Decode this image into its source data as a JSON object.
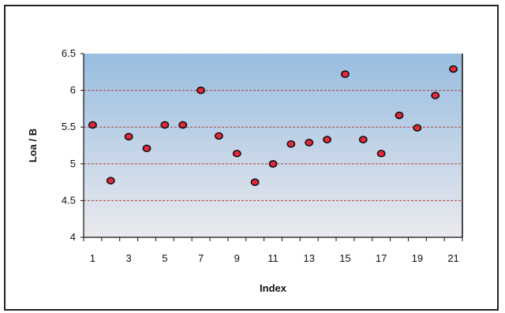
{
  "chart_data": {
    "type": "scatter",
    "title": "",
    "xlabel": "Index",
    "ylabel": "Loa / B",
    "xlim": [
      0.5,
      21.5
    ],
    "ylim": [
      4,
      6.5
    ],
    "x_ticks": [
      1,
      3,
      5,
      7,
      9,
      11,
      13,
      15,
      17,
      19,
      21
    ],
    "y_ticks": [
      4,
      4.5,
      5,
      5.5,
      6,
      6.5
    ],
    "y_tick_labels": [
      "4",
      "4.5",
      "5",
      "5.5",
      "6",
      "6.5"
    ],
    "grid": "horizontal dashed",
    "legend": "none",
    "series": [
      {
        "x": [
          1,
          2,
          3,
          4,
          5,
          6,
          7,
          8,
          9,
          10,
          11,
          12,
          13,
          14,
          15,
          16,
          17,
          18,
          19,
          20,
          21
        ],
        "y": [
          5.53,
          4.77,
          5.37,
          5.21,
          5.53,
          5.53,
          6.0,
          5.38,
          5.14,
          4.75,
          5.0,
          5.27,
          5.29,
          5.33,
          6.22,
          5.33,
          5.14,
          5.66,
          5.49,
          5.93,
          6.29
        ]
      }
    ],
    "colors": {
      "marker_fill": "#e8283a",
      "marker_stroke": "#111111",
      "gridline": "#b04040",
      "plot_bg_top": "#98bde0",
      "plot_bg_bottom": "#eaeaee"
    }
  }
}
